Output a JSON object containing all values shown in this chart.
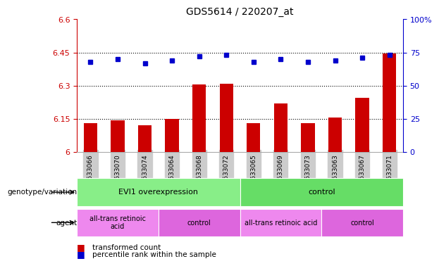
{
  "title": "GDS5614 / 220207_at",
  "samples": [
    "GSM1633066",
    "GSM1633070",
    "GSM1633074",
    "GSM1633064",
    "GSM1633068",
    "GSM1633072",
    "GSM1633065",
    "GSM1633069",
    "GSM1633073",
    "GSM1633063",
    "GSM1633067",
    "GSM1633071"
  ],
  "red_values": [
    6.13,
    6.145,
    6.12,
    6.15,
    6.305,
    6.31,
    6.13,
    6.22,
    6.13,
    6.155,
    6.245,
    6.445
  ],
  "blue_values_pct": [
    68,
    70,
    67,
    69,
    72,
    73,
    68,
    70,
    68,
    69,
    71,
    73
  ],
  "ylim_left": [
    6.0,
    6.6
  ],
  "ylim_right": [
    0,
    100
  ],
  "yticks_left": [
    6.0,
    6.15,
    6.3,
    6.45,
    6.6
  ],
  "yticks_right": [
    0,
    25,
    50,
    75,
    100
  ],
  "ytick_labels_left": [
    "6",
    "6.15",
    "6.3",
    "6.45",
    "6.6"
  ],
  "ytick_labels_right": [
    "0",
    "25",
    "50",
    "75",
    "100%"
  ],
  "hlines": [
    6.15,
    6.3,
    6.45
  ],
  "bar_color": "#cc0000",
  "dot_color": "#0000cc",
  "bar_bottom": 6.0,
  "genotype_groups": [
    {
      "label": "EVI1 overexpression",
      "start": 0,
      "end": 5,
      "color": "#88ee88"
    },
    {
      "label": "control",
      "start": 6,
      "end": 11,
      "color": "#66dd66"
    }
  ],
  "agent_groups": [
    {
      "label": "all-trans retinoic\nacid",
      "start": 0,
      "end": 2,
      "color": "#ee88ee"
    },
    {
      "label": "control",
      "start": 3,
      "end": 5,
      "color": "#dd66dd"
    },
    {
      "label": "all-trans retinoic acid",
      "start": 6,
      "end": 8,
      "color": "#ee88ee"
    },
    {
      "label": "control",
      "start": 9,
      "end": 11,
      "color": "#dd66dd"
    }
  ],
  "row_label_genotype": "genotype/variation",
  "row_label_agent": "agent",
  "legend_red": "transformed count",
  "legend_blue": "percentile rank within the sample",
  "bg_color": "#ffffff",
  "tick_bg_color": "#cccccc",
  "left_axis_color": "#cc0000",
  "right_axis_color": "#0000cc"
}
